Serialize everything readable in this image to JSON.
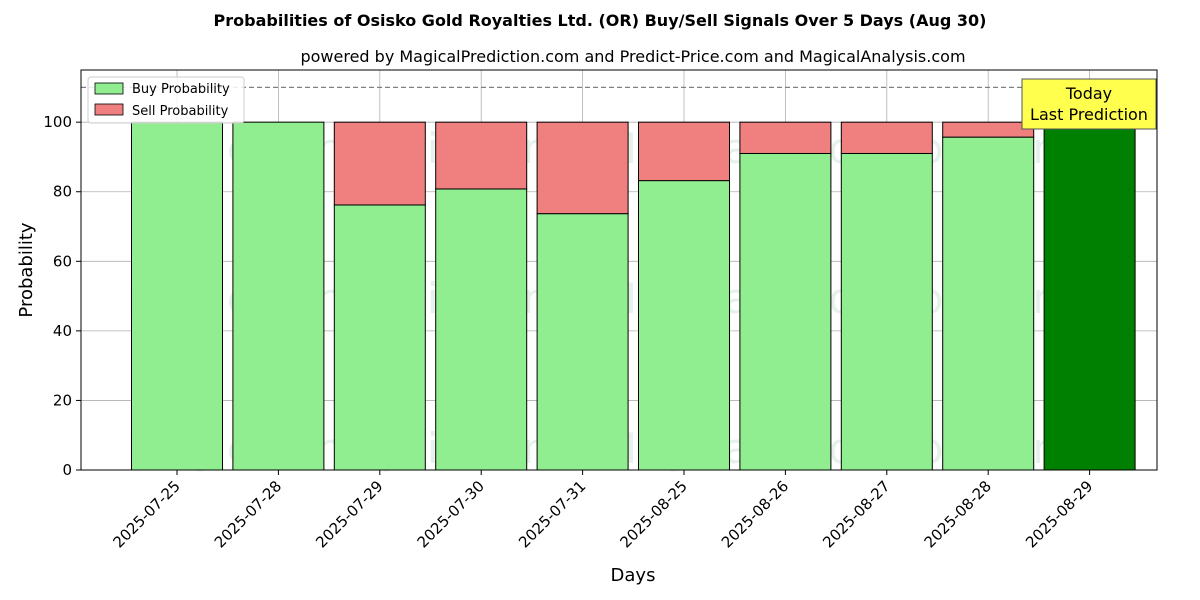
{
  "chart_data": {
    "type": "bar",
    "stacked": true,
    "title": "Probabilities of Osisko Gold Royalties Ltd. (OR) Buy/Sell Signals Over 5 Days (Aug 30)",
    "subtitle": "powered by MagicalPrediction.com and Predict-Price.com and MagicalAnalysis.com",
    "xlabel": "Days",
    "ylabel": "Probability",
    "ylim": [
      0,
      115
    ],
    "yticks": [
      0,
      20,
      40,
      60,
      80,
      100
    ],
    "reference_line": 110,
    "grid": true,
    "categories": [
      "2025-07-25",
      "2025-07-28",
      "2025-07-29",
      "2025-07-30",
      "2025-07-31",
      "2025-08-25",
      "2025-08-26",
      "2025-08-27",
      "2025-08-28",
      "2025-08-29"
    ],
    "series": [
      {
        "name": "Buy Probability",
        "color": "#90ee90",
        "values": [
          100,
          100,
          76.2,
          80.8,
          73.7,
          83.2,
          91.0,
          91.0,
          95.7,
          100
        ]
      },
      {
        "name": "Sell Probability",
        "color": "#f08080",
        "values": [
          0,
          0,
          23.8,
          19.2,
          26.3,
          16.8,
          9.0,
          9.0,
          4.3,
          0
        ]
      }
    ],
    "highlight": {
      "index": 9,
      "color": "#008000"
    },
    "legend_position": "top-left",
    "annotation": {
      "lines": [
        "Today",
        "Last Prediction"
      ],
      "background": "#ffff4d"
    },
    "watermarks": [
      "MagicalAnalysis.com",
      "MagicalPrediction.com",
      "MagicalAnalysis.com",
      "MagicalPrediction.com",
      "MagicalAnalysis.com",
      "MagicalPrediction.com"
    ]
  }
}
